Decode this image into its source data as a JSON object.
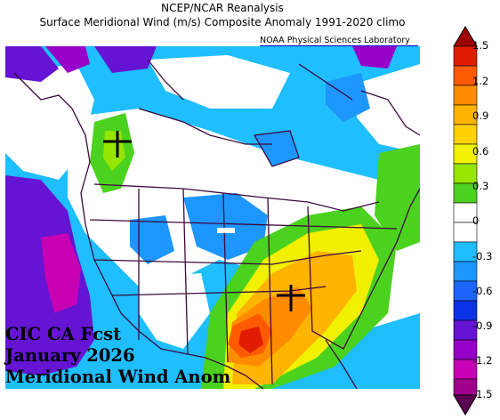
{
  "header": {
    "source": "NCEP/NCAR Reanalysis",
    "subtitle": "Surface Meridional Wind (m/s) Composite Anomaly 1991-2020 climo",
    "credit": "NOAA Physical Sciences Laboratory"
  },
  "caption": {
    "line1": "CIC CA Fcst",
    "line2": "January 2026",
    "line3": "Meridional Wind Anom"
  },
  "colorbar": {
    "ticks": [
      "1.5",
      "1.2",
      "0.9",
      "0.6",
      "0.3",
      "0",
      "-0.3",
      "-0.6",
      "-0.9",
      "-1.2",
      "-1.5"
    ],
    "colors": {
      "plus_1_5": "#a00000",
      "plus_1_35": "#e11b00",
      "plus_1_2": "#ff5a00",
      "plus_1_05": "#ff8c00",
      "plus_0_9": "#ffb400",
      "plus_0_75": "#ffd200",
      "plus_0_6": "#f0f000",
      "plus_0_45": "#96e600",
      "plus_0_3": "#4bd21e",
      "zero": "#ffffff",
      "minus_0_3": "#1ebeff",
      "minus_0_45": "#1e96ff",
      "minus_0_6": "#1e64ff",
      "minus_0_75": "#0a32e6",
      "minus_0_9": "#6414d2",
      "minus_1_05": "#9600c8",
      "minus_1_2": "#c800b4",
      "minus_1_35": "#a0008c",
      "minus_1_5": "#5a0050"
    }
  },
  "map": {
    "region": "North America",
    "markers": [
      "cross-marker-washington",
      "cross-marker-florida-panhandle"
    ],
    "boundary_color": "#3c0a3c"
  }
}
